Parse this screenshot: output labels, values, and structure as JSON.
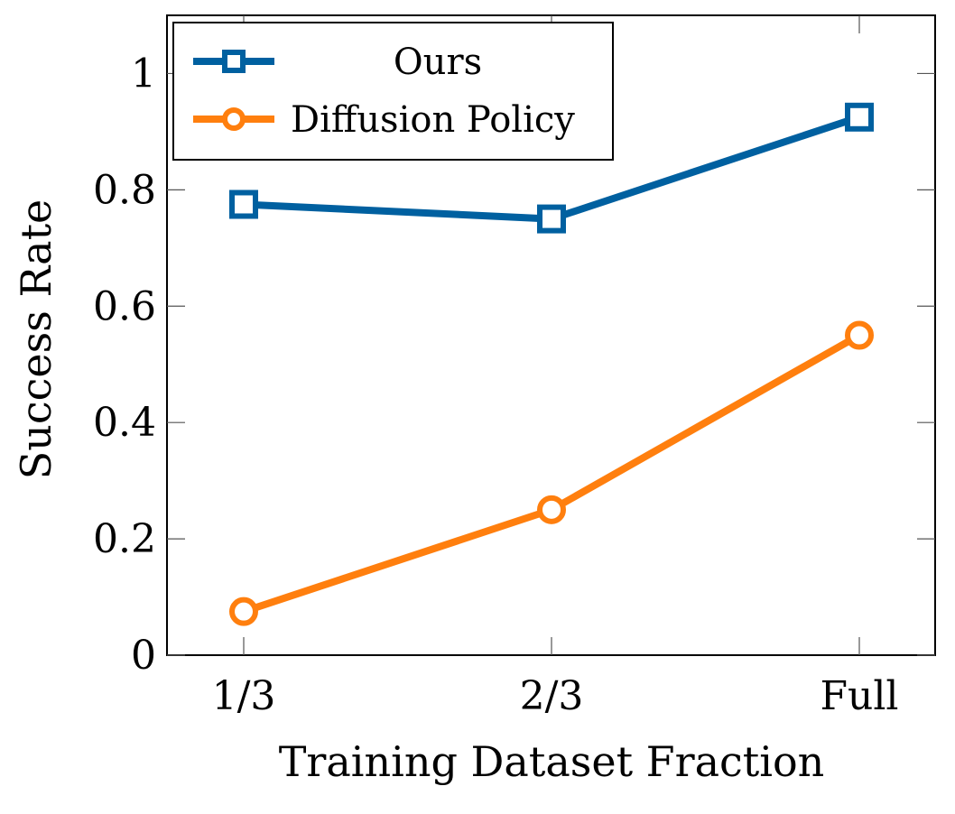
{
  "chart_data": {
    "type": "line",
    "categories": [
      "1/3",
      "2/3",
      "Full"
    ],
    "series": [
      {
        "name": "Ours",
        "values": [
          0.775,
          0.75,
          0.925
        ],
        "color": "#0060a0",
        "marker": "square"
      },
      {
        "name": "Diffusion Policy",
        "values": [
          0.075,
          0.25,
          0.55
        ],
        "color": "#ff7f0e",
        "marker": "circle"
      }
    ],
    "xlabel": "Training Dataset Fraction",
    "ylabel": "Success Rate",
    "ylim": [
      0,
      1.1
    ],
    "yticks": [
      0,
      0.2,
      0.4,
      0.6,
      0.8,
      1
    ],
    "ytick_labels": [
      "0",
      "0.2",
      "0.4",
      "0.6",
      "0.8",
      "1"
    ],
    "grid": false,
    "legend_position": "top-left"
  }
}
